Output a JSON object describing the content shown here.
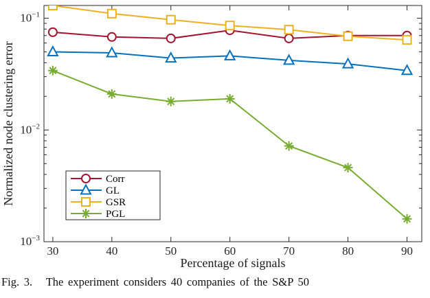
{
  "figure": {
    "caption": "Fig. 3.   The experiment considers 40 companies of the S&P 50"
  },
  "chart_data": {
    "type": "line",
    "title": "",
    "xlabel": "Percentage of signals",
    "ylabel": "Normalized node clustering error",
    "yscale": "log",
    "grid": false,
    "legend_position": "lower-left",
    "xlim": [
      28.5,
      92.5
    ],
    "ylim": [
      0.001,
      0.13
    ],
    "xticks": [
      30,
      40,
      50,
      60,
      70,
      80,
      90
    ],
    "yticks": [
      0.001,
      0.01,
      0.1
    ],
    "ytick_labels": [
      "10^-3",
      "10^-2",
      "10^-1"
    ],
    "x": [
      30,
      40,
      50,
      60,
      70,
      80,
      90
    ],
    "series": [
      {
        "name": "Corr",
        "color": "#A2142F",
        "marker": "circle",
        "values": [
          0.075,
          0.068,
          0.066,
          0.078,
          0.066,
          0.07,
          0.07
        ]
      },
      {
        "name": "GL",
        "color": "#0072BD",
        "marker": "triangle",
        "values": [
          0.05,
          0.049,
          0.044,
          0.046,
          0.042,
          0.039,
          0.034
        ]
      },
      {
        "name": "GSR",
        "color": "#EDB120",
        "marker": "square",
        "values": [
          0.13,
          0.11,
          0.097,
          0.086,
          0.079,
          0.069,
          0.064
        ]
      },
      {
        "name": "PGL",
        "color": "#77AC30",
        "marker": "asterisk",
        "values": [
          0.034,
          0.021,
          0.018,
          0.019,
          0.0072,
          0.0046,
          0.0016
        ]
      }
    ]
  }
}
